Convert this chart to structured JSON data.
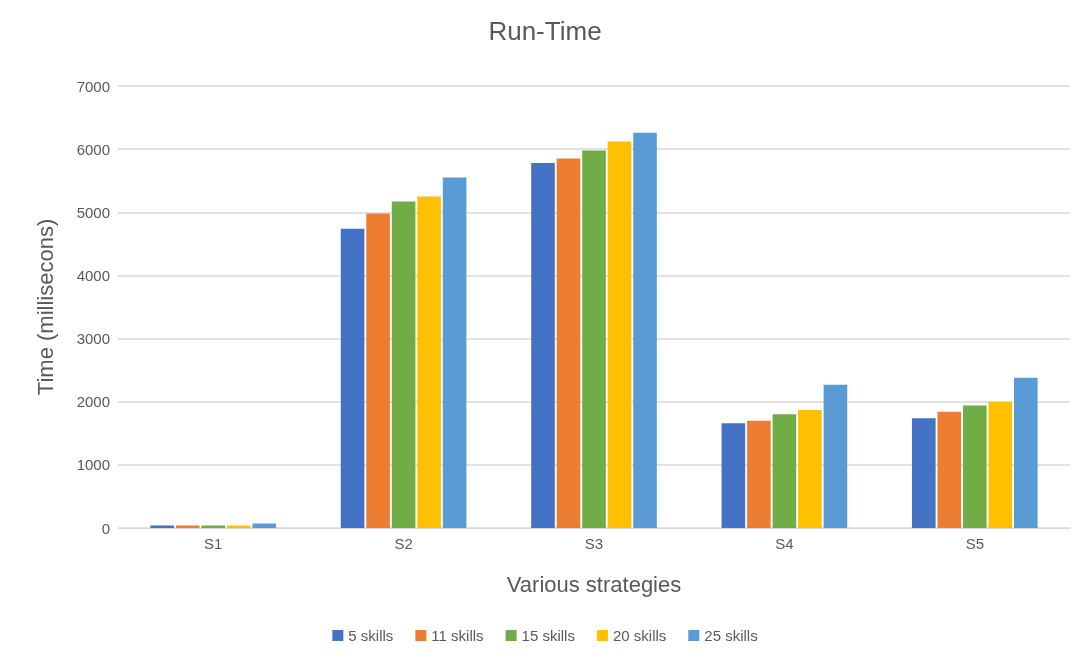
{
  "chart_data": {
    "type": "bar",
    "title": "Run-Time",
    "xlabel": "Various strategies",
    "ylabel": "Time (millisecons)",
    "categories": [
      "S1",
      "S2",
      "S3",
      "S4",
      "S5"
    ],
    "series": [
      {
        "name": "5 skills",
        "color": "#4472c4",
        "values": [
          40,
          4740,
          5780,
          1660,
          1740
        ]
      },
      {
        "name": "11 skills",
        "color": "#ed7d31",
        "values": [
          40,
          4980,
          5850,
          1700,
          1840
        ]
      },
      {
        "name": "15 skills",
        "color": "#70ad47",
        "values": [
          40,
          5170,
          5980,
          1800,
          1940
        ]
      },
      {
        "name": "20 skills",
        "color": "#ffc000",
        "values": [
          40,
          5250,
          6120,
          1870,
          2000
        ]
      },
      {
        "name": "25 skills",
        "color": "#5b9bd5",
        "values": [
          70,
          5550,
          6260,
          2270,
          2380
        ]
      }
    ],
    "ylim": [
      0,
      7000
    ],
    "yticks": [
      0,
      1000,
      2000,
      3000,
      4000,
      5000,
      6000,
      7000
    ],
    "grid": "y",
    "legend": "bottom"
  }
}
